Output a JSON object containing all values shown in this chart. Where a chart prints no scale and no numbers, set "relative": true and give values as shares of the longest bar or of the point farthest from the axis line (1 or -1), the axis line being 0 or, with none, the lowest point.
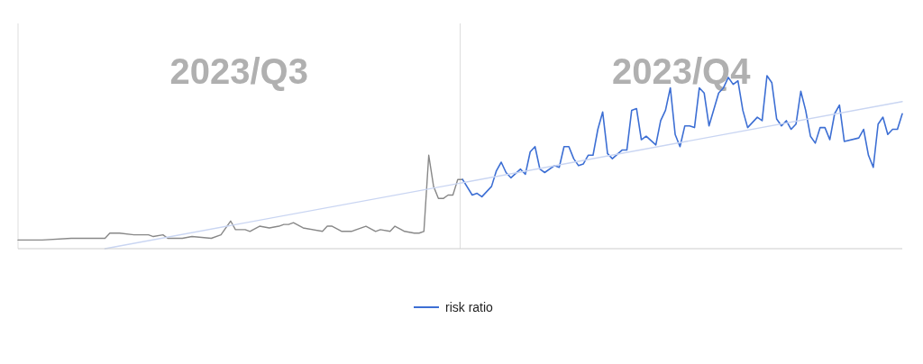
{
  "chart_data": {
    "type": "line",
    "relative": true,
    "legend": "bottom",
    "annotations": [
      "2023/Q3",
      "2023/Q4"
    ],
    "categories": [
      null,
      null,
      null,
      null,
      null,
      null,
      null,
      null,
      null,
      null,
      null,
      null,
      null,
      null,
      null,
      null,
      null,
      null,
      null,
      null,
      null,
      null,
      null,
      null,
      null,
      null,
      null,
      null,
      null,
      null,
      null,
      null,
      null,
      null,
      null,
      null,
      null,
      null,
      null,
      null,
      null,
      null,
      null,
      null,
      null,
      null,
      null,
      null,
      null,
      null,
      null,
      null,
      null,
      null,
      null,
      null,
      null,
      null,
      null,
      null,
      null,
      null,
      null,
      null,
      null,
      null,
      null,
      null,
      null,
      null,
      null,
      null,
      null,
      null,
      null,
      null,
      null,
      null,
      null,
      null,
      null,
      null,
      null,
      null,
      null,
      null,
      null,
      null,
      null,
      null,
      null,
      null,
      null,
      null,
      null,
      null,
      null,
      null,
      null,
      null,
      null,
      null,
      null,
      null,
      null,
      null,
      null,
      null,
      null,
      null,
      null,
      null,
      null,
      null,
      null,
      null,
      null,
      null,
      null,
      null,
      null,
      null,
      null,
      null,
      null,
      null,
      null,
      null,
      null,
      null,
      null,
      null,
      null,
      null,
      null,
      null,
      null,
      null,
      null,
      null,
      null,
      null,
      null,
      null,
      null,
      null,
      null,
      null,
      null,
      null,
      null,
      null,
      null,
      null,
      null,
      null,
      null,
      null,
      null,
      null,
      null,
      null,
      null,
      null,
      null,
      null,
      null,
      null,
      null,
      null,
      null,
      null,
      null,
      null,
      null,
      null,
      null,
      null,
      null,
      null,
      null,
      null,
      null,
      null
    ],
    "series": [
      {
        "color": "#888888",
        "values": [
          0.05,
          null,
          null,
          null,
          null,
          0.05,
          null,
          null,
          null,
          null,
          null,
          0.06,
          null,
          null,
          0.06,
          0.06,
          null,
          null,
          0.06,
          0.09,
          null,
          0.09,
          null,
          null,
          0.08,
          null,
          null,
          0.08,
          0.07,
          null,
          0.08,
          0.06,
          null,
          null,
          0.06,
          null,
          0.07,
          null,
          null,
          null,
          0.06,
          null,
          0.08,
          null,
          0.16,
          0.11,
          null,
          0.11,
          0.1,
          null,
          0.13,
          null,
          0.12,
          null,
          0.13,
          0.14,
          0.14,
          0.15,
          null,
          0.12,
          null,
          null,
          null,
          0.1,
          0.13,
          0.13,
          null,
          0.1,
          null,
          0.1,
          null,
          null,
          0.13,
          null,
          0.1,
          0.11,
          null,
          0.1,
          0.13,
          null,
          0.1,
          null,
          0.09,
          0.09,
          0.1,
          0.54,
          0.36,
          0.29,
          0.29,
          0.31,
          0.31,
          0.4,
          0.4,
          null,
          null,
          null,
          null,
          null,
          null,
          null,
          null,
          null,
          null,
          null,
          null,
          null,
          null,
          null,
          null,
          null,
          null,
          null,
          null,
          null,
          null,
          null,
          null,
          null,
          null,
          null,
          null,
          null,
          null,
          null,
          null,
          null,
          null,
          null,
          null,
          null,
          null,
          null,
          null,
          null,
          null,
          null,
          null,
          null,
          null,
          null,
          null,
          null,
          null,
          null,
          null,
          null,
          null,
          null,
          null,
          null,
          null,
          null,
          null,
          null,
          null,
          null,
          null,
          null,
          null,
          null,
          null,
          null,
          null,
          null,
          null,
          null,
          null,
          null,
          null,
          null,
          null,
          null,
          null,
          null,
          null,
          null,
          null,
          null,
          null,
          null,
          null,
          null,
          null,
          null
        ]
      },
      {
        "name": "risk ratio",
        "color": "#3d6fd4",
        "values": [
          null,
          null,
          null,
          null,
          null,
          null,
          null,
          null,
          null,
          null,
          null,
          null,
          null,
          null,
          null,
          null,
          null,
          null,
          null,
          null,
          null,
          null,
          null,
          null,
          null,
          null,
          null,
          null,
          null,
          null,
          null,
          null,
          null,
          null,
          null,
          null,
          null,
          null,
          null,
          null,
          null,
          null,
          null,
          null,
          null,
          null,
          null,
          null,
          null,
          null,
          null,
          null,
          null,
          null,
          null,
          null,
          null,
          null,
          null,
          null,
          null,
          null,
          null,
          null,
          null,
          null,
          null,
          null,
          null,
          null,
          null,
          null,
          null,
          null,
          null,
          null,
          null,
          null,
          null,
          null,
          null,
          null,
          null,
          null,
          null,
          null,
          null,
          null,
          null,
          null,
          null,
          null,
          0.4,
          null,
          0.31,
          0.32,
          0.3,
          null,
          0.36,
          0.45,
          0.5,
          0.44,
          0.41,
          null,
          0.46,
          0.43,
          0.56,
          0.59,
          0.46,
          0.44,
          null,
          0.48,
          0.47,
          0.59,
          0.59,
          0.52,
          0.48,
          0.49,
          0.54,
          0.54,
          0.69,
          0.79,
          0.55,
          0.52,
          null,
          0.57,
          0.57,
          0.8,
          0.81,
          0.63,
          0.65,
          null,
          0.6,
          0.74,
          0.8,
          0.93,
          0.66,
          0.59,
          0.71,
          0.71,
          0.7,
          0.93,
          0.9,
          0.71,
          null,
          0.9,
          0.93,
          0.99,
          0.95,
          0.97,
          0.8,
          0.7,
          null,
          0.76,
          0.74,
          1.0,
          0.96,
          0.75,
          0.71,
          0.74,
          0.69,
          0.72,
          0.91,
          0.8,
          0.65,
          0.61,
          0.7,
          0.7,
          0.63,
          0.78,
          0.83,
          0.62,
          null,
          null,
          0.64,
          0.69,
          0.54,
          0.47,
          0.72,
          0.76,
          0.66,
          0.69,
          0.69,
          0.78
        ]
      },
      {
        "color": "#c9d5f2",
        "values": [
          null,
          null,
          null,
          null,
          null,
          null,
          null,
          null,
          null,
          null,
          null,
          null,
          null,
          null,
          null,
          null,
          null,
          null,
          0,
          null,
          null,
          null,
          null,
          null,
          null,
          null,
          null,
          null,
          null,
          null,
          null,
          null,
          null,
          null,
          null,
          null,
          null,
          null,
          null,
          null,
          null,
          null,
          null,
          null,
          null,
          null,
          null,
          null,
          null,
          null,
          null,
          null,
          null,
          null,
          null,
          null,
          null,
          null,
          null,
          null,
          null,
          null,
          null,
          null,
          null,
          null,
          null,
          null,
          null,
          null,
          null,
          null,
          null,
          null,
          null,
          null,
          null,
          null,
          null,
          null,
          null,
          null,
          null,
          null,
          null,
          null,
          null,
          null,
          null,
          null,
          null,
          null,
          null,
          null,
          null,
          null,
          null,
          null,
          null,
          null,
          null,
          null,
          null,
          null,
          null,
          null,
          null,
          null,
          null,
          null,
          null,
          null,
          null,
          null,
          null,
          null,
          null,
          null,
          null,
          null,
          null,
          null,
          null,
          null,
          null,
          null,
          null,
          null,
          null,
          null,
          null,
          null,
          null,
          null,
          null,
          null,
          null,
          null,
          null,
          null,
          null,
          null,
          null,
          null,
          null,
          null,
          null,
          null,
          null,
          null,
          null,
          null,
          null,
          null,
          null,
          null,
          null,
          null,
          null,
          null,
          null,
          null,
          null,
          null,
          null,
          null,
          null,
          null,
          null,
          null,
          null,
          null,
          null,
          null,
          null,
          null,
          null,
          null,
          null,
          null,
          null,
          null,
          null,
          0.85
        ]
      }
    ]
  }
}
